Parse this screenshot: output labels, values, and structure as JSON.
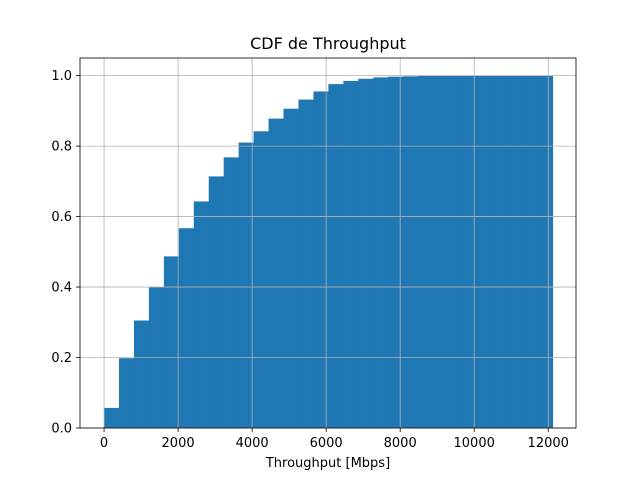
{
  "chart_data": {
    "type": "bar",
    "title": "CDF de Throughput",
    "xlabel": "Throughput [Mbps]",
    "ylabel": "",
    "xlim": [
      -650,
      12750
    ],
    "ylim": [
      0,
      1.05
    ],
    "x_ticks": [
      0,
      2000,
      4000,
      6000,
      8000,
      10000,
      12000
    ],
    "y_ticks": [
      0.0,
      0.2,
      0.4,
      0.6,
      0.8,
      1.0
    ],
    "x_tick_labels": [
      "0",
      "2000",
      "4000",
      "6000",
      "8000",
      "10000",
      "12000"
    ],
    "y_tick_labels": [
      "0.0",
      "0.2",
      "0.4",
      "0.6",
      "0.8",
      "1.0"
    ],
    "grid": true,
    "color": "#1f77b4",
    "bin_edges": [
      0,
      404,
      808,
      1212,
      1616,
      2020,
      2424,
      2828,
      3232,
      3636,
      4040,
      4444,
      4848,
      5252,
      5656,
      6060,
      6464,
      6868,
      7272,
      7676,
      8080,
      8484,
      8888,
      9292,
      9696,
      10100,
      10504,
      10908,
      11312,
      11716,
      12120
    ],
    "values": [
      0.057,
      0.198,
      0.305,
      0.4,
      0.487,
      0.567,
      0.643,
      0.714,
      0.768,
      0.81,
      0.842,
      0.878,
      0.906,
      0.932,
      0.955,
      0.976,
      0.985,
      0.991,
      0.995,
      0.997,
      0.998,
      0.999,
      0.999,
      1.0,
      1.0,
      1.0,
      1.0,
      1.0,
      1.0,
      1.0
    ]
  }
}
